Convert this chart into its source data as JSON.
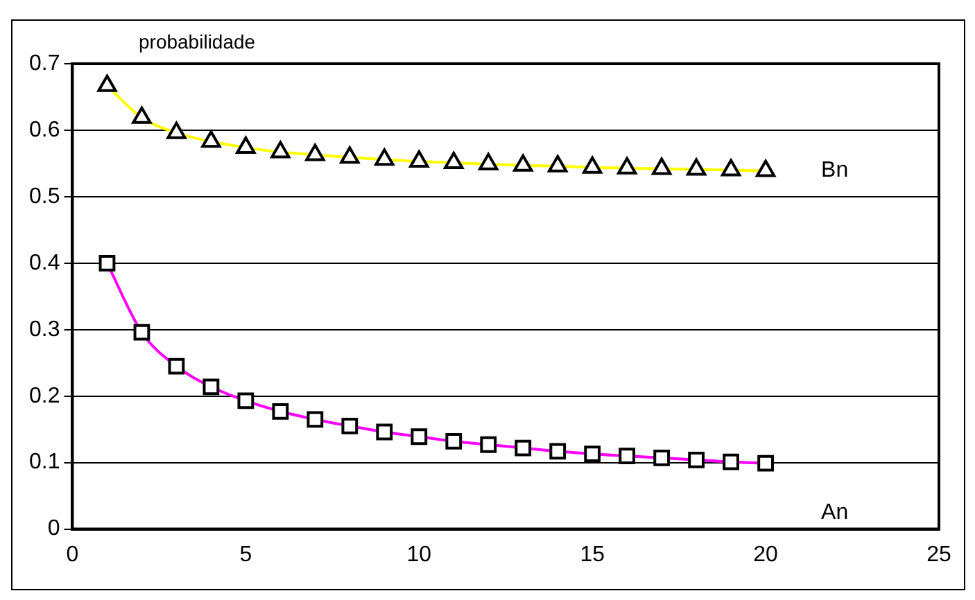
{
  "chart_data": {
    "type": "line",
    "ylabel": "probabilidade",
    "x": [
      1,
      2,
      3,
      4,
      5,
      6,
      7,
      8,
      9,
      10,
      11,
      12,
      13,
      14,
      15,
      16,
      17,
      18,
      19,
      20
    ],
    "series": [
      {
        "name": "Bn",
        "color": "#ffff00",
        "marker": "triangle",
        "values": [
          0.667,
          0.619,
          0.596,
          0.583,
          0.574,
          0.567,
          0.563,
          0.559,
          0.556,
          0.553,
          0.551,
          0.549,
          0.547,
          0.546,
          0.544,
          0.543,
          0.542,
          0.541,
          0.54,
          0.539
        ]
      },
      {
        "name": "An",
        "color": "#ff00ff",
        "marker": "square",
        "values": [
          0.4,
          0.296,
          0.245,
          0.214,
          0.193,
          0.177,
          0.165,
          0.155,
          0.146,
          0.139,
          0.132,
          0.127,
          0.122,
          0.117,
          0.113,
          0.11,
          0.107,
          0.104,
          0.101,
          0.099
        ]
      }
    ],
    "xlim": [
      0,
      25
    ],
    "xticks": [
      0,
      5,
      10,
      15,
      20,
      25
    ],
    "ylim": [
      0,
      0.7
    ],
    "yticks": [
      0,
      0.1,
      0.2,
      0.3,
      0.4,
      0.5,
      0.6,
      0.7
    ],
    "grid": "y",
    "legend": false
  }
}
